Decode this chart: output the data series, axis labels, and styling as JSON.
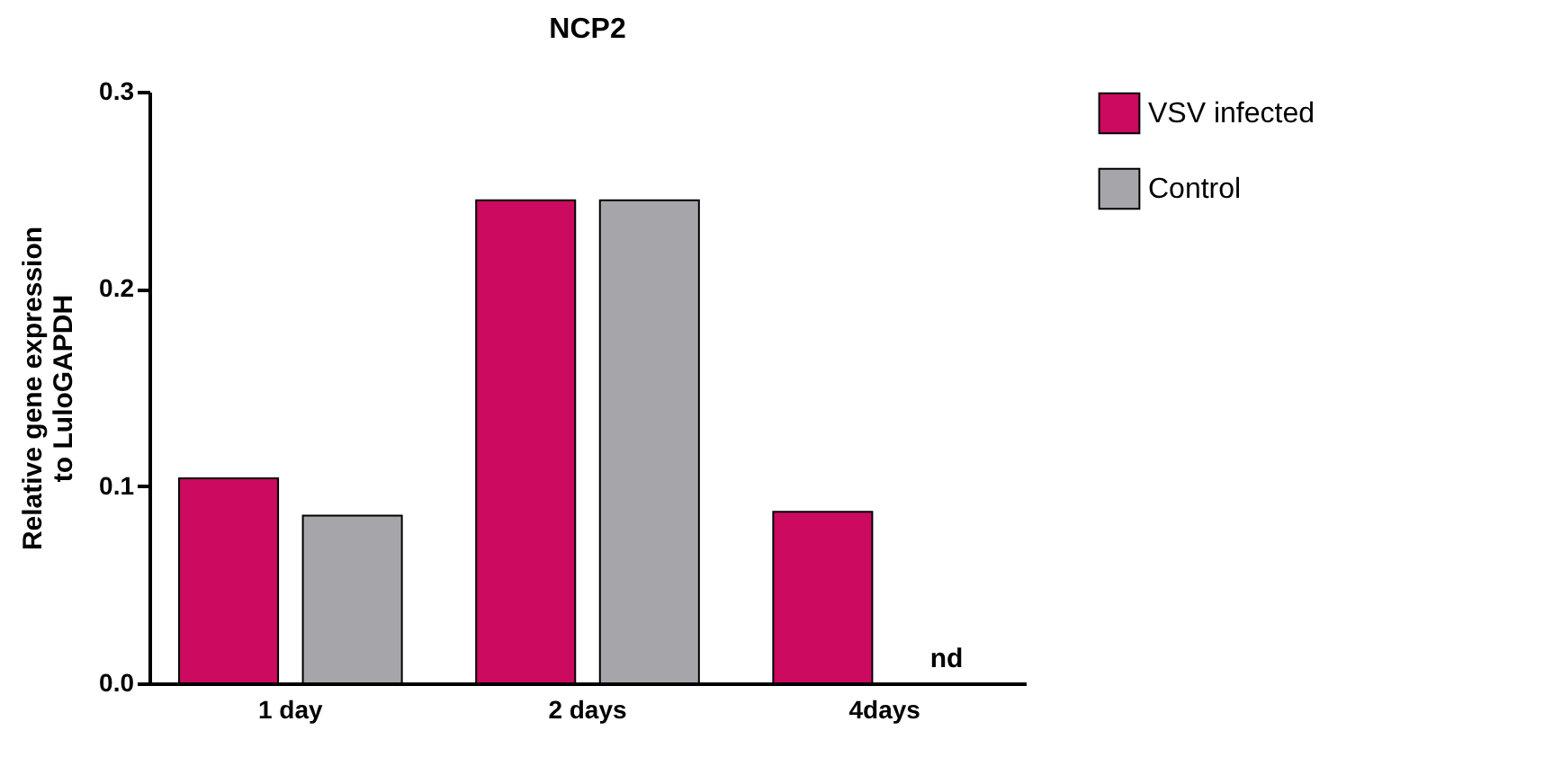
{
  "chart_data": {
    "type": "bar",
    "title": "NCP2",
    "ylabel": "Relative gene expression\nto LuloGAPDH",
    "categories": [
      "1 day",
      "2 days",
      "4days"
    ],
    "series": [
      {
        "name": "VSV infected",
        "color": "#cc0a5f",
        "values": [
          0.104,
          0.245,
          0.087
        ]
      },
      {
        "name": "Control",
        "color": "#a6a5aa",
        "values": [
          0.085,
          0.245,
          null
        ]
      }
    ],
    "ylim": [
      0,
      0.3
    ],
    "yticks": [
      {
        "value": 0,
        "label": "0.0"
      },
      {
        "value": 0.1,
        "label": "0.1"
      },
      {
        "value": 0.2,
        "label": "0.2"
      },
      {
        "value": 0.3,
        "label": "0.3"
      }
    ],
    "grid": false,
    "legend": "top right",
    "annotations": [
      "nd"
    ]
  }
}
